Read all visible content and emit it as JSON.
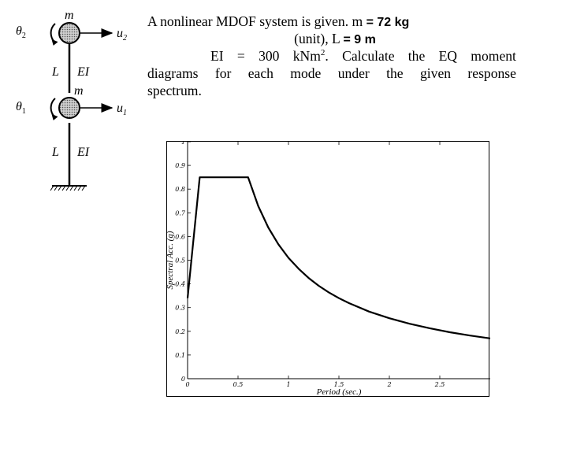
{
  "diagram": {
    "mass_top": "m",
    "mass_mid": "m",
    "theta_top": "θ",
    "theta_top_sub": "2",
    "theta_bot": "θ",
    "theta_bot_sub": "1",
    "u_top": "u",
    "u_top_sub": "2",
    "u_bot": "u",
    "u_bot_sub": "1",
    "upper_L": "L",
    "upper_EI": "EI",
    "lower_L": "L",
    "lower_EI": "EI"
  },
  "problem": {
    "line1_text": "A nonlinear MDOF system is given. m",
    "line1_value": "= 72 kg",
    "line2_text": "(unit), L",
    "line2_value": "= 9 m",
    "line3_words": [
      "EI",
      "=",
      "300",
      "kNm",
      "Calculate",
      "the",
      "EQ",
      "moment"
    ],
    "line3_sup": "2",
    "line3_dot": ".",
    "line4_words": [
      "diagrams",
      "for",
      "each",
      "mode",
      "under",
      "the",
      "given",
      "response"
    ],
    "line5_text": "spectrum."
  },
  "chart_data": {
    "type": "line",
    "title": "",
    "xlabel": "Period (sec.)",
    "ylabel": "Spectral Acc. (g)",
    "xlim": [
      0,
      3.0
    ],
    "ylim": [
      0,
      1.0
    ],
    "xticks": [
      0,
      0.5,
      1,
      1.5,
      2,
      2.5
    ],
    "xtick_labels": [
      "0",
      "0.5",
      "1",
      "1.5",
      "2",
      "2.5"
    ],
    "yticks": [
      0,
      0.1,
      0.2,
      0.3,
      0.4,
      0.5,
      0.6,
      0.7,
      0.8,
      0.9,
      1
    ],
    "ytick_labels": [
      "0",
      "0.1",
      "0.2",
      "0.3",
      "0.4",
      "0.5",
      "0.6",
      "0.7",
      "0.8",
      "0.9",
      "1"
    ],
    "grid": false,
    "series": [
      {
        "x": [
          0,
          0.12,
          0.6,
          0.7,
          0.8,
          0.9,
          1.0,
          1.1,
          1.2,
          1.3,
          1.4,
          1.5,
          1.6,
          1.8,
          2.0,
          2.2,
          2.4,
          2.6,
          2.8,
          3.0
        ],
        "y": [
          0.34,
          0.85,
          0.85,
          0.729,
          0.638,
          0.567,
          0.51,
          0.464,
          0.425,
          0.392,
          0.364,
          0.34,
          0.319,
          0.283,
          0.255,
          0.232,
          0.213,
          0.196,
          0.182,
          0.17
        ]
      }
    ]
  }
}
